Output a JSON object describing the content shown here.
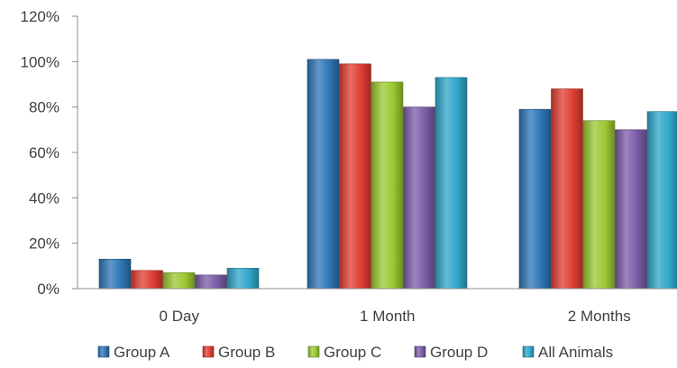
{
  "chart_data": {
    "type": "bar",
    "categories": [
      "0 Day",
      "1 Month",
      "2 Months"
    ],
    "series": [
      {
        "name": "Group A",
        "values": [
          13,
          101,
          79
        ],
        "color": "#2E75B6"
      },
      {
        "name": "Group B",
        "values": [
          8,
          99,
          88
        ],
        "color": "#E03C31"
      },
      {
        "name": "Group C",
        "values": [
          7,
          91,
          74
        ],
        "color": "#9BC831"
      },
      {
        "name": "Group D",
        "values": [
          6,
          80,
          70
        ],
        "color": "#7B5BA6"
      },
      {
        "name": "All Animals",
        "values": [
          9,
          93,
          78
        ],
        "color": "#2FA6C9"
      }
    ],
    "ylim": [
      0,
      120
    ],
    "yticks": [
      0,
      20,
      40,
      60,
      80,
      100,
      120
    ],
    "ytick_labels": [
      "0%",
      "20%",
      "40%",
      "60%",
      "80%",
      "100%",
      "120%"
    ],
    "legend_position": "bottom",
    "grid": false
  }
}
